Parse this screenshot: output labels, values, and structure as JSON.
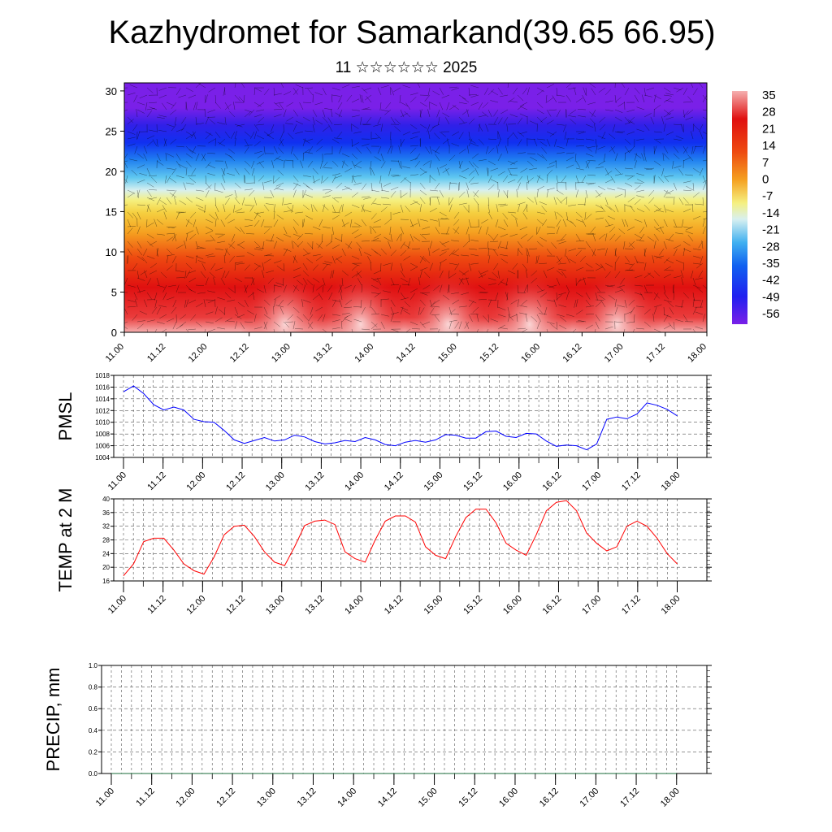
{
  "title": "Kazhydromet for Samarkand(39.65 66.95)",
  "subtitle": "11 ☆☆☆☆☆☆ 2025",
  "chart_data": [
    {
      "type": "heatmap",
      "title": "",
      "x_tick_labels": [
        "11.00",
        "11.12",
        "12.00",
        "12.12",
        "13.00",
        "13.12",
        "14.00",
        "14.12",
        "15.00",
        "15.12",
        "16.00",
        "16.12",
        "17.00",
        "17.12",
        "18.00"
      ],
      "y_ticks": [
        0,
        5,
        10,
        15,
        20,
        25,
        30
      ],
      "ylim": [
        0,
        31
      ],
      "colorbar_labels": [
        "35",
        "28",
        "21",
        "14",
        "7",
        "0",
        "-7",
        "-14",
        "-21",
        "-28",
        "-35",
        "-42",
        "-49",
        "-56"
      ],
      "colors": {
        "hot": "#f7c6c6",
        "red": "#e01010",
        "orange": "#f5a020",
        "yellow": "#f5f080",
        "cyan": "#60c8f0",
        "blue": "#1030f0",
        "violet": "#7a20e8"
      }
    },
    {
      "type": "line",
      "ylabel": "PMSL",
      "ylim": [
        1004,
        1018
      ],
      "y_ticks": [
        1004,
        1006,
        1008,
        1010,
        1012,
        1014,
        1016,
        1018
      ],
      "x_tick_labels": [
        "11.00",
        "11.12",
        "12.00",
        "12.12",
        "13.00",
        "13.12",
        "14.00",
        "14.12",
        "15.00",
        "15.12",
        "16.00",
        "16.12",
        "17.00",
        "17.12",
        "18.00"
      ],
      "color": "#0000ff",
      "values": [
        1015.2,
        1016.2,
        1014.9,
        1013.0,
        1012.1,
        1012.6,
        1012.1,
        1010.5,
        1010.1,
        1010.0,
        1008.6,
        1007.0,
        1006.4,
        1006.9,
        1007.4,
        1006.8,
        1007.0,
        1007.8,
        1007.5,
        1006.7,
        1006.3,
        1006.5,
        1006.9,
        1006.7,
        1007.4,
        1007.0,
        1006.2,
        1006.0,
        1006.6,
        1006.9,
        1006.6,
        1007.0,
        1007.9,
        1007.8,
        1007.3,
        1007.3,
        1008.4,
        1008.5,
        1007.6,
        1007.4,
        1008.1,
        1008.0,
        1006.8,
        1005.9,
        1006.1,
        1006.0,
        1005.3,
        1006.3,
        1010.5,
        1010.9,
        1010.6,
        1011.4,
        1013.3,
        1012.9,
        1012.2,
        1011.1
      ]
    },
    {
      "type": "line",
      "ylabel": "TEMP at 2 M",
      "ylim": [
        16,
        40
      ],
      "y_ticks": [
        16,
        20,
        24,
        28,
        32,
        36,
        40
      ],
      "x_tick_labels": [
        "11.00",
        "11.12",
        "12.00",
        "12.12",
        "13.00",
        "13.12",
        "14.00",
        "14.12",
        "15.00",
        "15.12",
        "16.00",
        "16.12",
        "17.00",
        "17.12",
        "18.00"
      ],
      "color": "#ff0000",
      "values": [
        17.5,
        21.0,
        27.5,
        28.5,
        28.5,
        25.0,
        21.0,
        19.0,
        18.0,
        23.0,
        29.5,
        32.0,
        32.3,
        29.0,
        24.5,
        21.5,
        20.5,
        26.0,
        32.2,
        33.5,
        33.8,
        32.5,
        24.5,
        22.5,
        21.5,
        28.0,
        33.5,
        35.0,
        35.0,
        33.2,
        26.0,
        23.5,
        22.5,
        29.0,
        34.5,
        37.0,
        37.0,
        33.0,
        27.0,
        25.0,
        23.5,
        29.5,
        36.5,
        39.0,
        39.5,
        36.5,
        30.0,
        27.0,
        24.8,
        26.0,
        32.0,
        33.5,
        32.0,
        28.5,
        24.0,
        21.0
      ]
    },
    {
      "type": "line",
      "ylabel": "PRECIP, mm",
      "ylim": [
        0,
        1
      ],
      "y_ticks": [
        0,
        0.2,
        0.4,
        0.6,
        0.8,
        1.0
      ],
      "y_tick_labels": [
        "0.0",
        "0.2",
        "0.4",
        "0.6",
        "0.8",
        "1.0"
      ],
      "x_tick_labels": [
        "11.00",
        "11.12",
        "12.00",
        "12.12",
        "13.00",
        "13.12",
        "14.00",
        "14.12",
        "15.00",
        "15.12",
        "16.00",
        "16.12",
        "17.00",
        "17.12",
        "18.00"
      ],
      "color": "#1a6b3a",
      "values": [
        0,
        0,
        0,
        0,
        0,
        0,
        0,
        0,
        0,
        0,
        0,
        0,
        0,
        0,
        0,
        0,
        0,
        0,
        0,
        0,
        0,
        0,
        0,
        0,
        0,
        0,
        0,
        0,
        0,
        0,
        0,
        0,
        0,
        0,
        0,
        0,
        0,
        0,
        0,
        0,
        0,
        0,
        0,
        0,
        0,
        0,
        0,
        0,
        0,
        0,
        0,
        0,
        0,
        0,
        0,
        0
      ]
    }
  ]
}
